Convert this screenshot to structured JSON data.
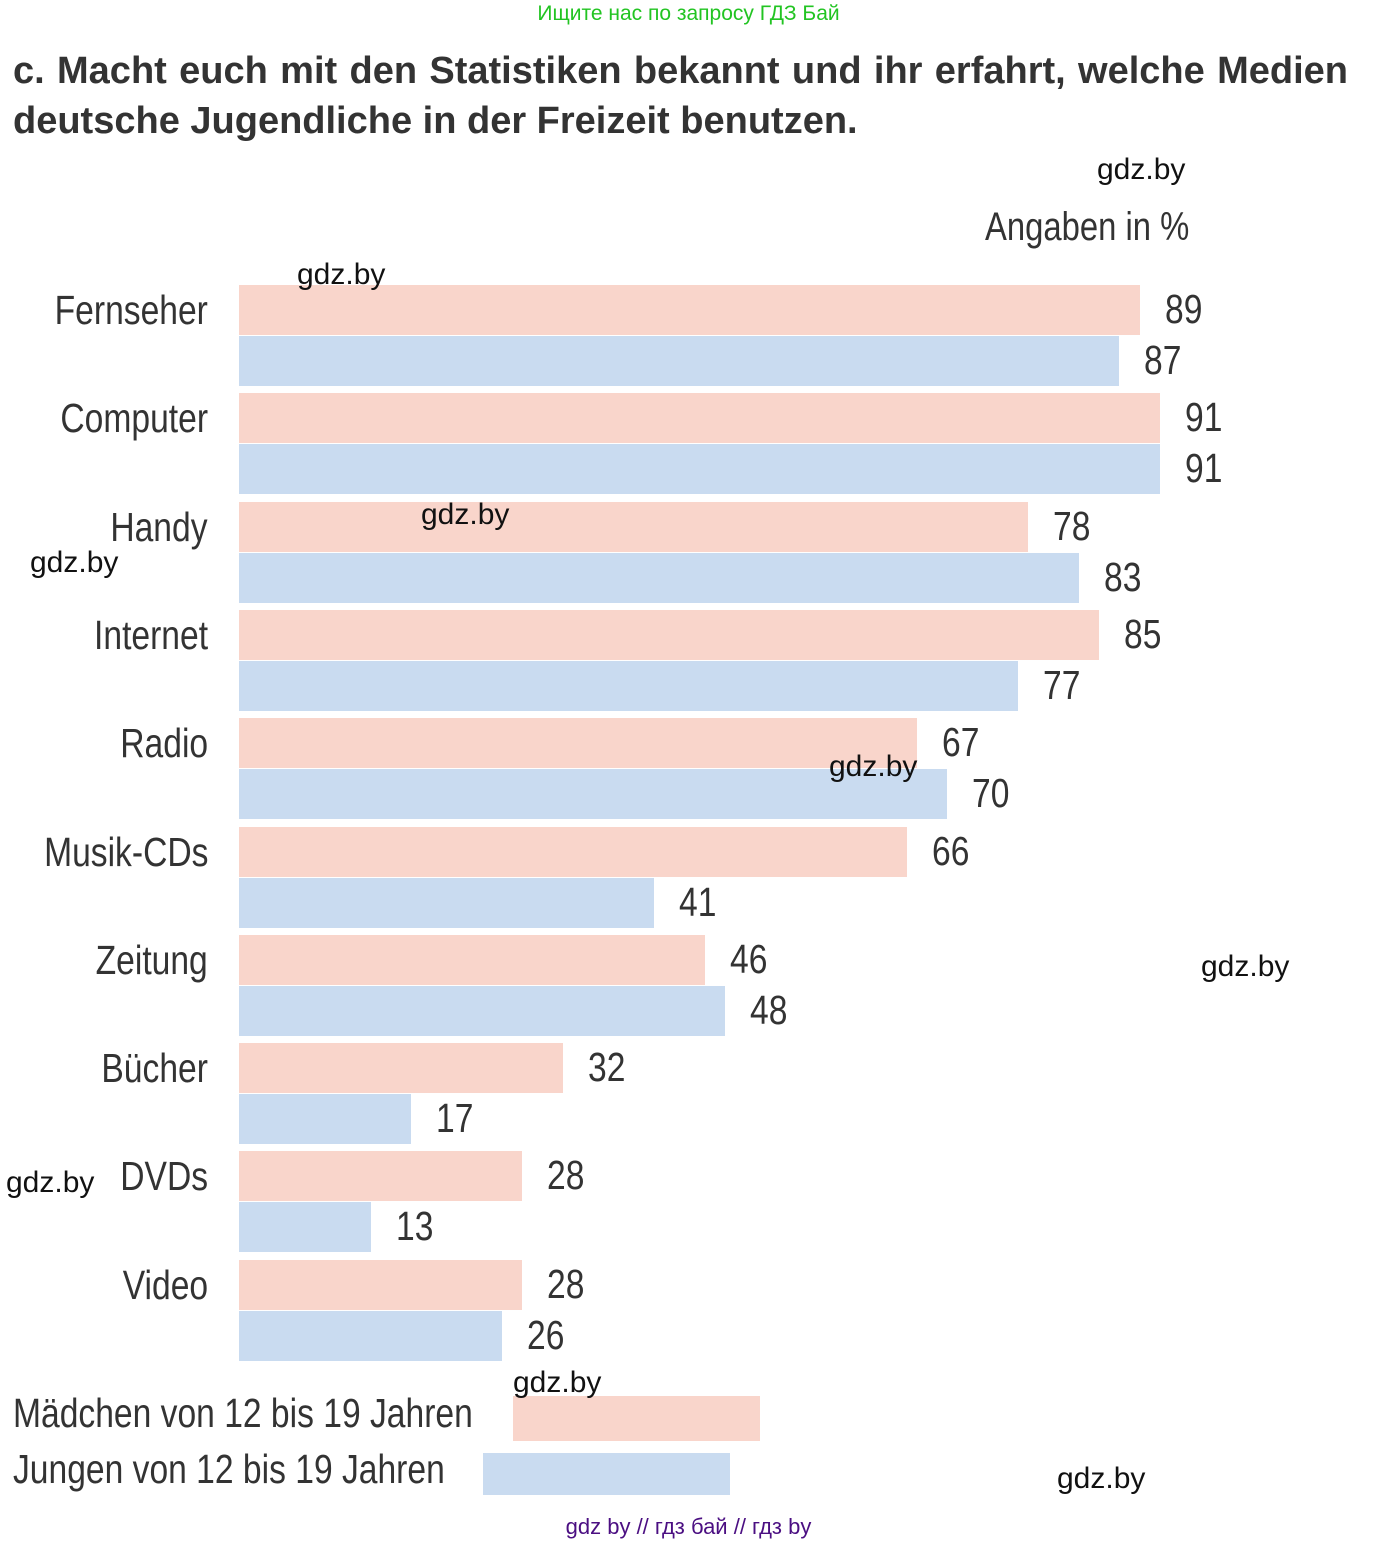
{
  "top_note": "Ищите нас по запросу ГДЗ Бай",
  "heading": "c. Macht euch mit den Statistiken bekannt und ihr erfahrt, welche Medien deutsche Jugendliche in der Freizeit benutzen.",
  "watermarks": [
    "gdz.by",
    "gdz.by",
    "gdz.by",
    "gdz.by",
    "gdz.by",
    "gdz.by",
    "gdz.by",
    "gdz.by",
    "gdz.by"
  ],
  "footer": "gdz by  //  гдз бай  //  гдз by",
  "chart_data": {
    "type": "bar",
    "orientation": "horizontal",
    "unit_label": "Angaben in %",
    "categories": [
      "Fernseher",
      "Computer",
      "Handy",
      "Internet",
      "Radio",
      "Musik-CDs",
      "Zeitung",
      "Bücher",
      "DVDs",
      "Video"
    ],
    "series": [
      {
        "name": "Mädchen von 12 bis 19 Jahren",
        "color": "#f9d5cb",
        "values": [
          89,
          91,
          78,
          85,
          67,
          66,
          46,
          32,
          28,
          28
        ]
      },
      {
        "name": "Jungen von 12 bis 19 Jahren",
        "color": "#c9dbf0",
        "values": [
          87,
          91,
          83,
          77,
          70,
          41,
          48,
          17,
          13,
          26
        ]
      }
    ],
    "xlim": [
      0,
      100
    ],
    "grid": false,
    "legend": "bottom-left"
  }
}
